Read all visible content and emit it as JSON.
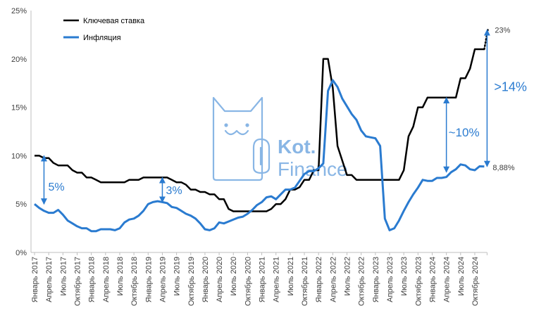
{
  "chart_data": {
    "type": "line",
    "title": "",
    "xlabel": "",
    "ylabel": "",
    "ylim": [
      0,
      25
    ],
    "yticks": [
      "0%",
      "5%",
      "10%",
      "15%",
      "20%",
      "25%"
    ],
    "ytick_values": [
      0,
      5,
      10,
      15,
      20,
      25
    ],
    "grid": false,
    "legend_position": "top-left",
    "x_start": "2017-01",
    "x_end": "2024-12",
    "xtick_labels": [
      "Январь 2017",
      "Апрель 2017",
      "Июль 2017",
      "Октябрь 2017",
      "Январь 2018",
      "Апрель 2018",
      "Июль 2018",
      "Октябрь 2018",
      "Январь 2019",
      "Апрель 2019",
      "Июль 2019",
      "Октябрь 2019",
      "Январь 2020",
      "Апрель 2020",
      "Июль 2020",
      "Октябрь 2020",
      "Январь 2021",
      "Апрель 2021",
      "Июль 2021",
      "Октябрь 2021",
      "Январь 2022",
      "Апрель 2022",
      "Июль 2022",
      "Октябрь 2022",
      "Январь 2023",
      "Апрель 2023",
      "Июль 2023",
      "Октябрь 2023",
      "Январь 2024",
      "Апрель 2024",
      "Июль 2024",
      "Октябрь 2024"
    ],
    "series": [
      {
        "name": "Ключевая ставка",
        "color": "#000000",
        "values": [
          10,
          10,
          9.75,
          9.75,
          9.25,
          9,
          9,
          9,
          8.5,
          8.25,
          8.25,
          7.75,
          7.75,
          7.5,
          7.25,
          7.25,
          7.25,
          7.25,
          7.25,
          7.25,
          7.5,
          7.5,
          7.5,
          7.75,
          7.75,
          7.75,
          7.75,
          7.75,
          7.75,
          7.5,
          7.25,
          7.25,
          7,
          6.5,
          6.5,
          6.25,
          6.25,
          6,
          6,
          5.5,
          5.5,
          4.5,
          4.25,
          4.25,
          4.25,
          4.25,
          4.25,
          4.25,
          4.25,
          4.25,
          4.5,
          5,
          5,
          5.5,
          6.5,
          6.5,
          6.75,
          7.5,
          7.5,
          8.5,
          8.5,
          20,
          20,
          17,
          11,
          9.5,
          8,
          8,
          7.5,
          7.5,
          7.5,
          7.5,
          7.5,
          7.5,
          7.5,
          7.5,
          7.5,
          7.5,
          8.5,
          12,
          13,
          15,
          15,
          16,
          16,
          16,
          16,
          16,
          16,
          16,
          18,
          18,
          19,
          21,
          21,
          21
        ],
        "forecast": {
          "value": 23,
          "label": "23%",
          "style": "dotted"
        }
      },
      {
        "name": "Инфляция",
        "color": "#2a7bd0",
        "values": [
          5,
          4.6,
          4.3,
          4.1,
          4.1,
          4.4,
          3.9,
          3.3,
          3,
          2.7,
          2.5,
          2.5,
          2.2,
          2.2,
          2.4,
          2.4,
          2.4,
          2.3,
          2.5,
          3.1,
          3.4,
          3.5,
          3.8,
          4.3,
          5,
          5.2,
          5.3,
          5.2,
          5.1,
          4.7,
          4.6,
          4.3,
          4,
          3.8,
          3.5,
          3,
          2.4,
          2.3,
          2.5,
          3.1,
          3,
          3.2,
          3.4,
          3.6,
          3.7,
          4,
          4.4,
          4.9,
          5.2,
          5.7,
          5.8,
          5.5,
          6,
          6.5,
          6.5,
          6.7,
          7.4,
          8.1,
          8.4,
          8.4,
          8.7,
          9.2,
          16.7,
          17.8,
          17.1,
          15.9,
          15.1,
          14.3,
          13.7,
          12.6,
          12,
          11.9,
          11.8,
          11,
          3.5,
          2.3,
          2.5,
          3.3,
          4.3,
          5.2,
          6,
          6.7,
          7.5,
          7.4,
          7.4,
          7.7,
          7.7,
          7.8,
          8.3,
          8.6,
          9.1,
          9,
          8.6,
          8.5,
          8.9,
          8.88
        ],
        "end_label": "8,88%"
      }
    ],
    "annotations": [
      {
        "label": "5%",
        "month": "2017-03",
        "from": 10,
        "to": 5
      },
      {
        "label": "3%",
        "month": "2019-04",
        "from": 7.75,
        "to": 5.2
      },
      {
        "label": "~10%",
        "month": "2024-04",
        "from": 16,
        "to": 8.3
      },
      {
        "label": ">14%",
        "month": "2024-12",
        "from": 23,
        "to": 8.88
      }
    ]
  },
  "watermark": {
    "line1": "Kot.",
    "line2": "Finance"
  }
}
